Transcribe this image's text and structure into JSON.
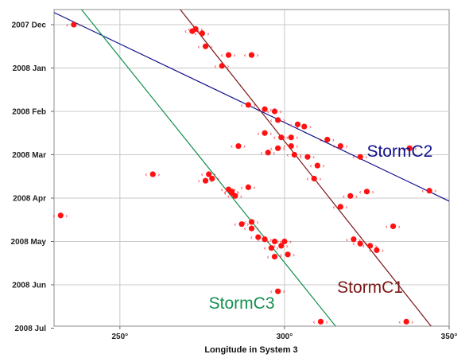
{
  "chart_data": {
    "type": "scatter",
    "xlabel": "Longitude in System 3",
    "x_ticks": [
      "250°",
      "300°",
      "350°"
    ],
    "x_tick_values": [
      250,
      300,
      350
    ],
    "xlim": [
      230,
      350
    ],
    "y_ticks": [
      "2007 Dec",
      "2008 Jan",
      "2008 Feb",
      "2008 Mar",
      "2008 Apr",
      "2008 May",
      "2008 Jun",
      "2008 Jul"
    ],
    "ylim": [
      0,
      7
    ],
    "y_direction": "down",
    "grid": true,
    "colors": {
      "points": "#ff1111",
      "StormC1": "#7a1616",
      "StormC2": "#10108a",
      "StormC3": "#159050"
    },
    "series": [
      {
        "name": "StormC1",
        "type": "line",
        "color": "#7a1616",
        "x": [
          268,
          345
        ],
        "y": [
          -0.38,
          7.0
        ],
        "label": "StormC1",
        "label_pos": [
          316,
          6.18
        ]
      },
      {
        "name": "StormC2",
        "type": "line",
        "color": "#10108a",
        "x": [
          230,
          350
        ],
        "y": [
          -0.28,
          4.07
        ],
        "label": "StormC2",
        "label_pos": [
          325,
          3.05
        ]
      },
      {
        "name": "StormC3",
        "type": "line",
        "color": "#159050",
        "x": [
          238,
          316
        ],
        "y": [
          -0.38,
          7.0
        ],
        "label": "StormC3",
        "label_pos": [
          277,
          6.55
        ]
      },
      {
        "name": "",
        "type": "scatter",
        "color": "#ff1111",
        "points": [
          [
            236,
            0.0
          ],
          [
            273,
            0.1
          ],
          [
            275,
            0.2
          ],
          [
            272,
            0.15
          ],
          [
            276,
            0.5
          ],
          [
            283,
            0.7
          ],
          [
            290,
            0.7
          ],
          [
            281,
            0.95
          ],
          [
            289,
            1.85
          ],
          [
            294,
            1.95
          ],
          [
            297,
            2.0
          ],
          [
            298,
            2.2
          ],
          [
            304,
            2.3
          ],
          [
            306,
            2.35
          ],
          [
            294,
            2.5
          ],
          [
            299,
            2.6
          ],
          [
            313,
            2.65
          ],
          [
            317,
            2.8
          ],
          [
            286,
            2.8
          ],
          [
            302,
            2.8
          ],
          [
            298,
            2.85
          ],
          [
            303,
            3.0
          ],
          [
            307,
            3.05
          ],
          [
            323,
            3.05
          ],
          [
            338,
            2.85
          ],
          [
            260,
            3.45
          ],
          [
            277,
            3.45
          ],
          [
            278,
            3.55
          ],
          [
            276,
            3.6
          ],
          [
            283,
            3.8
          ],
          [
            289,
            3.75
          ],
          [
            285,
            3.95
          ],
          [
            284,
            3.88
          ],
          [
            344,
            3.83
          ],
          [
            309,
            3.55
          ],
          [
            320,
            3.95
          ],
          [
            325,
            3.85
          ],
          [
            317,
            4.2
          ],
          [
            232,
            4.4
          ],
          [
            287,
            4.6
          ],
          [
            290,
            4.7
          ],
          [
            292,
            4.9
          ],
          [
            294,
            4.95
          ],
          [
            297,
            5.0
          ],
          [
            296,
            5.15
          ],
          [
            299,
            5.1
          ],
          [
            301,
            5.3
          ],
          [
            297,
            5.35
          ],
          [
            333,
            4.65
          ],
          [
            321,
            4.95
          ],
          [
            323,
            5.05
          ],
          [
            326,
            5.1
          ],
          [
            328,
            5.2
          ],
          [
            298,
            6.15
          ],
          [
            311,
            6.85
          ],
          [
            337,
            6.85
          ],
          [
            300,
            5.0
          ],
          [
            302,
            2.6
          ],
          [
            295,
            2.95
          ],
          [
            310,
            3.25
          ],
          [
            290,
            4.55
          ],
          [
            284,
            3.85
          ]
        ]
      }
    ]
  }
}
